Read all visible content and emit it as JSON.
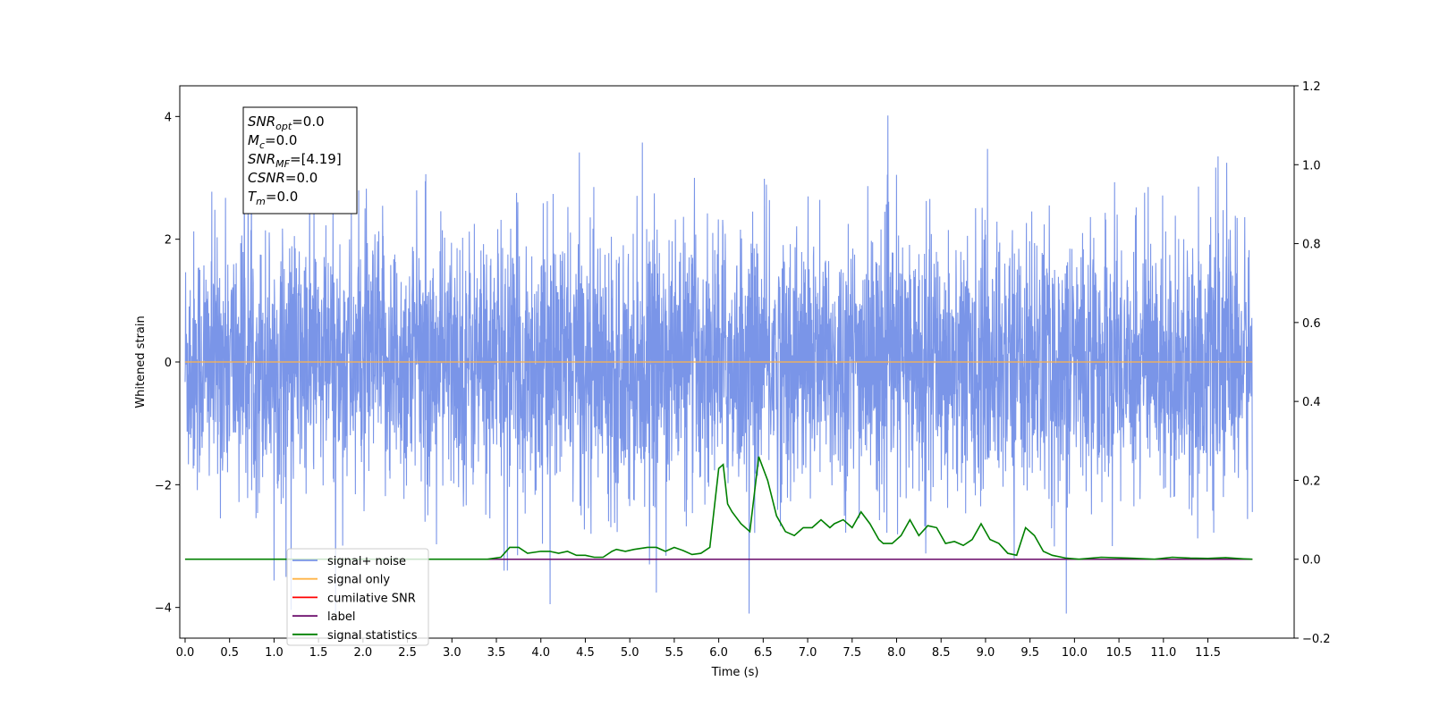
{
  "chart_data": {
    "type": "line",
    "xlabel": "Time (s)",
    "ylabel_left": "Whitened strain",
    "ylabel_right": "",
    "xlim": [
      -0.06,
      12.47
    ],
    "ylim_left": [
      -4.5,
      4.5
    ],
    "ylim_right": [
      -0.2,
      1.2
    ],
    "x_ticks": [
      "0.0",
      "0.5",
      "1.0",
      "1.5",
      "2.0",
      "2.5",
      "3.0",
      "3.5",
      "4.0",
      "4.5",
      "5.0",
      "5.5",
      "6.0",
      "6.5",
      "7.0",
      "7.5",
      "8.0",
      "8.5",
      "9.0",
      "9.5",
      "10.0",
      "10.5",
      "11.0",
      "11.5"
    ],
    "y_ticks_left": [
      "4",
      "2",
      "0",
      "−2",
      "−4"
    ],
    "y_ticks_right": [
      "1.2",
      "1.0",
      "0.8",
      "0.6",
      "0.4",
      "0.2",
      "0.0",
      "−0.2"
    ],
    "grid": false,
    "legend_position": "lower-left",
    "colors": {
      "signal_noise": "#7a95e8",
      "signal_only": "#ffb347",
      "cumulative_snr": "#ff0000",
      "label": "#6a0a6a",
      "signal_statistics": "#008000"
    },
    "series": [
      {
        "name": "signal+ noise",
        "axis": "left",
        "x_range": [
          0.0,
          12.0
        ],
        "note_amplitude_range": [
          -4.1,
          4.1
        ]
      },
      {
        "name": "signal only",
        "axis": "left",
        "values_constant": 0.0
      },
      {
        "name": "cumilative SNR",
        "axis": "right",
        "values_constant": 0.0
      },
      {
        "name": "label",
        "axis": "right",
        "values_constant": 0.0
      },
      {
        "name": "signal statistics",
        "axis": "right",
        "x": [
          0.0,
          3.2,
          3.4,
          3.55,
          3.65,
          3.75,
          3.85,
          4.0,
          4.1,
          4.2,
          4.3,
          4.4,
          4.5,
          4.6,
          4.7,
          4.8,
          4.85,
          4.95,
          5.05,
          5.2,
          5.3,
          5.4,
          5.5,
          5.6,
          5.7,
          5.8,
          5.9,
          6.0,
          6.05,
          6.1,
          6.15,
          6.25,
          6.35,
          6.45,
          6.55,
          6.65,
          6.75,
          6.85,
          6.95,
          7.05,
          7.1,
          7.15,
          7.25,
          7.3,
          7.4,
          7.5,
          7.55,
          7.6,
          7.7,
          7.8,
          7.85,
          7.95,
          8.05,
          8.15,
          8.25,
          8.35,
          8.45,
          8.55,
          8.65,
          8.75,
          8.85,
          8.95,
          9.05,
          9.15,
          9.25,
          9.35,
          9.45,
          9.55,
          9.65,
          9.75,
          9.9,
          10.05,
          10.3,
          10.6,
          10.9,
          11.1,
          11.3,
          11.5,
          11.7,
          11.9,
          12.0
        ],
        "values": [
          0.0,
          0.0,
          0.0,
          0.005,
          0.03,
          0.03,
          0.015,
          0.02,
          0.02,
          0.015,
          0.02,
          0.01,
          0.01,
          0.005,
          0.005,
          0.02,
          0.025,
          0.02,
          0.025,
          0.03,
          0.03,
          0.02,
          0.03,
          0.022,
          0.012,
          0.015,
          0.03,
          0.23,
          0.24,
          0.14,
          0.12,
          0.09,
          0.07,
          0.26,
          0.2,
          0.11,
          0.07,
          0.06,
          0.08,
          0.08,
          0.09,
          0.1,
          0.08,
          0.09,
          0.1,
          0.08,
          0.1,
          0.12,
          0.09,
          0.05,
          0.04,
          0.04,
          0.06,
          0.1,
          0.06,
          0.085,
          0.08,
          0.04,
          0.045,
          0.035,
          0.05,
          0.09,
          0.05,
          0.04,
          0.015,
          0.01,
          0.08,
          0.06,
          0.02,
          0.01,
          0.003,
          0.0,
          0.005,
          0.003,
          0.0,
          0.005,
          0.003,
          0.002,
          0.004,
          0.001,
          0.0
        ]
      }
    ]
  },
  "info_box": {
    "lines": [
      {
        "sym": "SNR",
        "sub": "opt",
        "val": "=0.0"
      },
      {
        "sym": "M",
        "sub": "c",
        "val": "=0.0"
      },
      {
        "sym": "SNR",
        "sub": "MF",
        "val": "=[4.19]"
      },
      {
        "sym": "CSNR",
        "sub": "",
        "val": "=0.0"
      },
      {
        "sym": "T",
        "sub": "m",
        "val": "=0.0"
      }
    ]
  },
  "legend": {
    "entries": [
      {
        "label": "signal+ noise",
        "color": "#7a95e8"
      },
      {
        "label": "signal only",
        "color": "#ffb347"
      },
      {
        "label": "cumilative SNR",
        "color": "#ff0000"
      },
      {
        "label": "label",
        "color": "#6a0a6a"
      },
      {
        "label": "signal statistics",
        "color": "#008000"
      }
    ]
  }
}
